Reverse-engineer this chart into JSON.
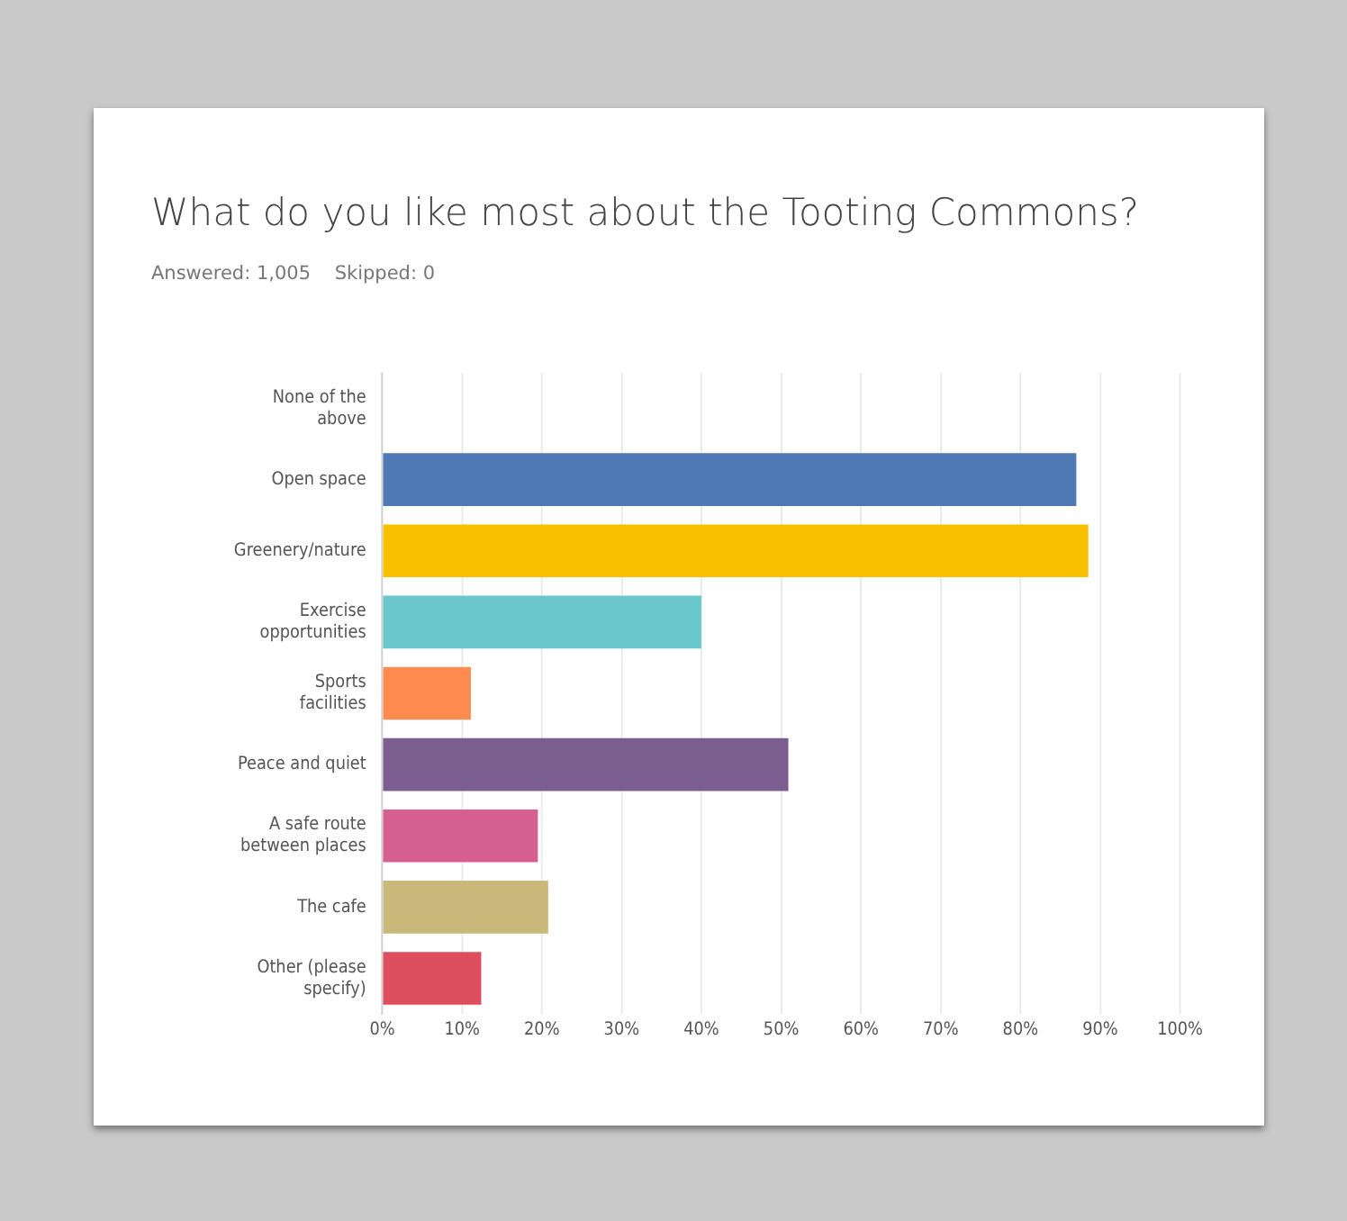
{
  "chart_data": {
    "type": "bar",
    "orientation": "horizontal",
    "title": "What do you like most about the Tooting Commons?",
    "subtitle": "Answered: 1,005    Skipped: 0",
    "categories": [
      "None of the above",
      "Open space",
      "Greenery/nature",
      "Exercise opportunities",
      "Sports facilities",
      "Peace and quiet",
      "A safe route between places",
      "The cafe",
      "Other (please specify)"
    ],
    "values": [
      0,
      87,
      88.5,
      40,
      11.1,
      50.9,
      19.5,
      20.8,
      12.4
    ],
    "colors": [
      "#4e79b4",
      "#4e79b4",
      "#f9c000",
      "#6ac8cc",
      "#ff8c4e",
      "#7b5e8f",
      "#d55f8e",
      "#c8b87a",
      "#dc4e5e"
    ],
    "xlim": [
      0,
      100
    ],
    "xticks": [
      {
        "value": 0,
        "label": "0%"
      },
      {
        "value": 10,
        "label": "10%"
      },
      {
        "value": 20,
        "label": "20%"
      },
      {
        "value": 30,
        "label": "30%"
      },
      {
        "value": 40,
        "label": "40%"
      },
      {
        "value": 50,
        "label": "50%"
      },
      {
        "value": 60,
        "label": "60%"
      },
      {
        "value": 70,
        "label": "70%"
      },
      {
        "value": 80,
        "label": "80%"
      },
      {
        "value": 90,
        "label": "90%"
      },
      {
        "value": 100,
        "label": "100%"
      }
    ],
    "grid": "x",
    "legend": false
  }
}
